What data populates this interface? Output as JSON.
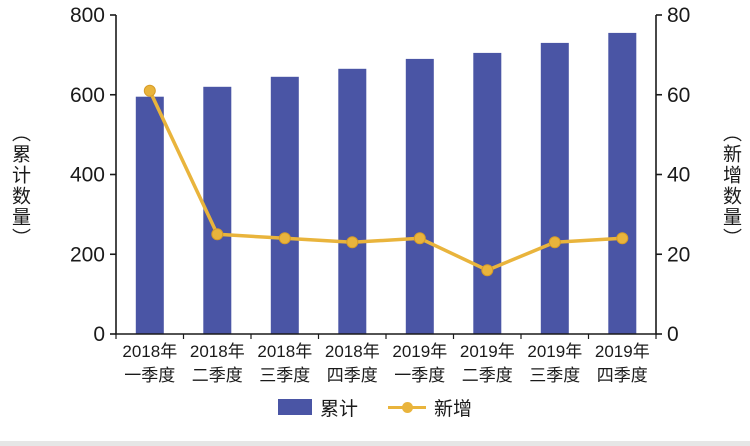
{
  "chart_data": {
    "type": "bar",
    "subtype": "combo-bar-line-dual-axis",
    "categories": [
      {
        "line1": "2018年",
        "line2": "一季度"
      },
      {
        "line1": "2018年",
        "line2": "二季度"
      },
      {
        "line1": "2018年",
        "line2": "三季度"
      },
      {
        "line1": "2018年",
        "line2": "四季度"
      },
      {
        "line1": "2019年",
        "line2": "一季度"
      },
      {
        "line1": "2019年",
        "line2": "二季度"
      },
      {
        "line1": "2019年",
        "line2": "三季度"
      },
      {
        "line1": "2019年",
        "line2": "四季度"
      }
    ],
    "series": [
      {
        "name": "累计",
        "type": "bar",
        "axis": "left",
        "color": "#4a55a5",
        "values": [
          595,
          620,
          645,
          665,
          690,
          705,
          730,
          755
        ]
      },
      {
        "name": "新增",
        "type": "line",
        "axis": "right",
        "color": "#e9b43c",
        "marker_stroke": "#d79c27",
        "values": [
          61,
          25,
          24,
          23,
          24,
          16,
          23,
          24
        ]
      }
    ],
    "axes": {
      "left": {
        "label": "（累计数量）",
        "min": 0,
        "max": 800,
        "ticks": [
          0,
          200,
          400,
          600,
          800
        ]
      },
      "right": {
        "label": "（新增数量）",
        "min": 0,
        "max": 80,
        "ticks": [
          0,
          20,
          40,
          60,
          80
        ]
      }
    },
    "legend": {
      "position": "bottom"
    },
    "grid": false,
    "axis_color": "#1a1a1a",
    "text_color": "#1a1a1a"
  }
}
